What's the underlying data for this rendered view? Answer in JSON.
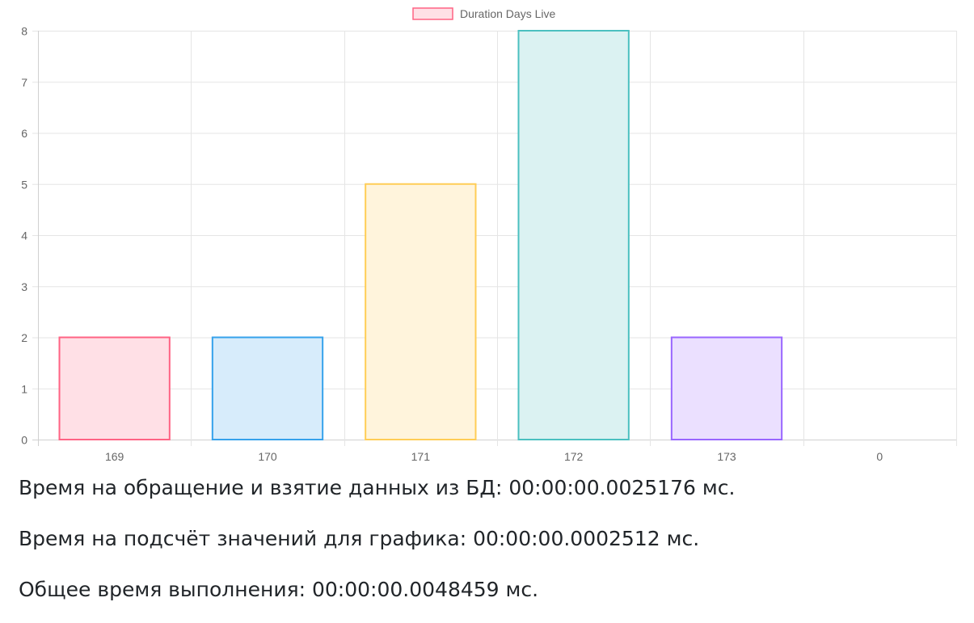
{
  "chart_data": {
    "type": "bar",
    "categories": [
      "169",
      "170",
      "171",
      "172",
      "173",
      "0"
    ],
    "series": [
      {
        "name": "Duration Days Live",
        "values": [
          2,
          2,
          5,
          8,
          2,
          0
        ]
      }
    ],
    "bar_fill_colors": [
      "#ffe0e6",
      "#d7ecfb",
      "#fff4dc",
      "#dbf2f2",
      "#ebe0ff",
      "#f4f5f5"
    ],
    "bar_border_colors": [
      "#ff6384",
      "#36a2eb",
      "#ffcd56",
      "#4bc0c0",
      "#9966ff",
      "#c9cbcf"
    ],
    "ylim": [
      0,
      8
    ],
    "yticks": [
      0,
      1,
      2,
      3,
      4,
      5,
      6,
      7,
      8
    ],
    "grid": true,
    "legend_position": "top"
  },
  "stats": {
    "db_time": "Время на обращение и взятие данных из БД: 00:00:00.0025176 мс.",
    "calc_time": "Время на подсчёт значений для графика: 00:00:00.0002512 мс.",
    "total_time": "Общее время выполнения: 00:00:00.0048459 мс."
  }
}
